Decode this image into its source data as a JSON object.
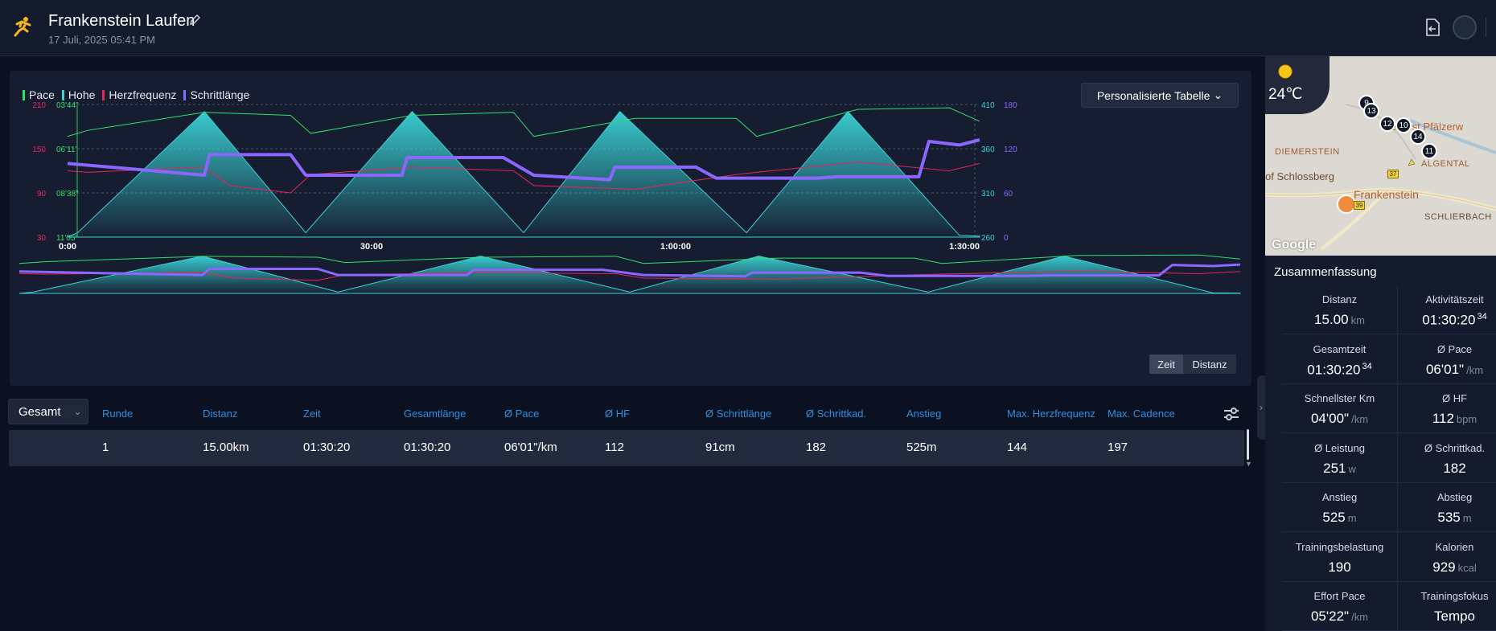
{
  "header": {
    "title": "Frankenstein Laufen",
    "date": "17 Juli, 2025 05:41 PM"
  },
  "chart": {
    "legend": [
      {
        "name": "Pace",
        "color": "#2ee06a"
      },
      {
        "name": "Hohe",
        "color": "#3ad3d6"
      },
      {
        "name": "Herzfrequenz",
        "color": "#e8245d"
      },
      {
        "name": "Schrittlänge",
        "color": "#8b67ff"
      }
    ],
    "table_select": "Personalisierte Tabelle",
    "left_axis_hr": [
      "210",
      "150",
      "90",
      "30"
    ],
    "left_axis_pace": [
      "03'44\"",
      "06'11\"",
      "08'38\"",
      "11'05\""
    ],
    "right_axis_alt": [
      "410",
      "360",
      "310",
      "260"
    ],
    "right_axis_stride": [
      "180",
      "120",
      "60",
      "0"
    ],
    "x_ticks": [
      "0:00",
      "30:00",
      "1:00:00",
      "1:30:00"
    ],
    "toggle_time": "Zeit",
    "toggle_distance": "Distanz"
  },
  "chart_data": {
    "type": "line",
    "xlabel": "",
    "x_unit": "minutes",
    "xlim": [
      0,
      90
    ],
    "ylim_hr": [
      30,
      210
    ],
    "ylim_pace_sec_per_km": [
      224,
      665
    ],
    "ylim_altitude": [
      260,
      410
    ],
    "ylim_stride": [
      0,
      180
    ],
    "series": [
      {
        "name": "Hohe",
        "x": [
          0,
          1,
          13.5,
          23.5,
          34,
          45,
          54.5,
          67,
          77,
          88,
          90
        ],
        "y": [
          260,
          265,
          402,
          265,
          402,
          265,
          402,
          265,
          402,
          262,
          261
        ]
      },
      {
        "name": "Pace",
        "x": [
          0,
          2,
          13.5,
          22,
          24,
          34,
          44,
          46,
          56,
          66,
          68,
          78,
          87,
          88,
          90
        ],
        "y": [
          330,
          310,
          250,
          260,
          320,
          260,
          250,
          330,
          270,
          270,
          330,
          240,
          235,
          250,
          280
        ]
      },
      {
        "name": "Herzfrequenz",
        "x": [
          0,
          2,
          13.5,
          16,
          22,
          24,
          34,
          44,
          46,
          56,
          66,
          68,
          78,
          87,
          90
        ],
        "y": [
          120,
          118,
          125,
          100,
          90,
          115,
          125,
          120,
          100,
          95,
          115,
          118,
          132,
          120,
          130
        ]
      },
      {
        "name": "Schrittlänge",
        "x": [
          0,
          13.5,
          14,
          22,
          23.5,
          33,
          33.5,
          43,
          46,
          53.5,
          54,
          62,
          64,
          74,
          76,
          84,
          85,
          88,
          90
        ],
        "y": [
          100,
          84,
          112,
          112,
          84,
          84,
          108,
          108,
          84,
          78,
          95,
          95,
          80,
          80,
          82,
          82,
          130,
          125,
          132
        ]
      }
    ]
  },
  "laps": {
    "selector": "Gesamt",
    "headers": [
      "Runde",
      "Distanz",
      "Zeit",
      "Gesamtlänge",
      "Ø Pace",
      "Ø HF",
      "Ø Schrittlänge",
      "Ø Schrittkad.",
      "Anstieg",
      "Max. Herzfrequenz",
      "Max. Cadence"
    ],
    "rows": [
      [
        "1",
        "15.00km",
        "01:30:20",
        "01:30:20",
        "06'01\"/km",
        "112",
        "91cm",
        "182",
        "525m",
        "144",
        "197"
      ]
    ]
  },
  "map": {
    "temperature": "24℃",
    "labels": {
      "diemerstein": "DIEMERSTEIN",
      "schlossberg": "of Schlossberg",
      "frankenstein": "Frankenstein",
      "forst": "eForst Pfälzerw",
      "algental": "ALGENTAL",
      "schlierbach": "SCHLIERBACH"
    },
    "markers": [
      "9",
      "13",
      "12",
      "10",
      "14",
      "11"
    ],
    "roads": [
      "37",
      "39"
    ],
    "google": "Google"
  },
  "summary": {
    "title": "Zusammenfassung",
    "stats": [
      {
        "label": "Distanz",
        "value": "15.00",
        "unit": "km",
        "sup": ""
      },
      {
        "label": "Aktivitätszeit",
        "value": "01:30:20",
        "unit": "",
        "sup": "34"
      },
      {
        "label": "Gesamtzeit",
        "value": "01:30:20",
        "unit": "",
        "sup": "34"
      },
      {
        "label": "Ø Pace",
        "value": "06'01\"",
        "unit": "/km",
        "sup": ""
      },
      {
        "label": "Schnellster Km",
        "value": "04'00\"",
        "unit": "/km",
        "sup": ""
      },
      {
        "label": "Ø HF",
        "value": "112",
        "unit": "bpm",
        "sup": ""
      },
      {
        "label": "Ø Leistung",
        "value": "251",
        "unit": "w",
        "sup": ""
      },
      {
        "label": "Ø Schrittkad.",
        "value": "182",
        "unit": "",
        "sup": ""
      },
      {
        "label": "Anstieg",
        "value": "525",
        "unit": "m",
        "sup": ""
      },
      {
        "label": "Abstieg",
        "value": "535",
        "unit": "m",
        "sup": ""
      },
      {
        "label": "Trainingsbelastung",
        "value": "190",
        "unit": "",
        "sup": ""
      },
      {
        "label": "Kalorien",
        "value": "929",
        "unit": "kcal",
        "sup": ""
      },
      {
        "label": "Effort Pace",
        "value": "05'22\"",
        "unit": "/km",
        "sup": ""
      },
      {
        "label": "Trainingsfokus",
        "value": "Tempo",
        "unit": "",
        "sup": ""
      }
    ]
  }
}
